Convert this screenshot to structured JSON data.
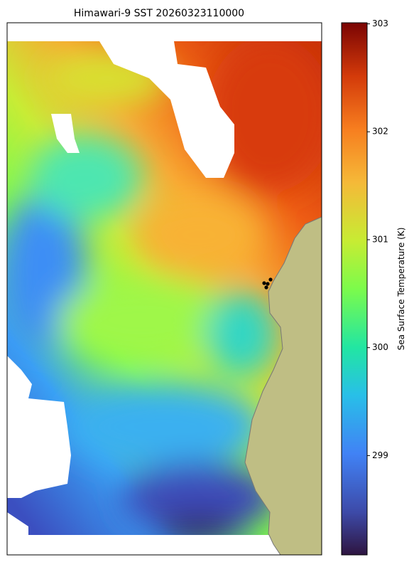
{
  "title": "Himawari-9 SST 20260323110000",
  "colorbar": {
    "label": "Sea Surface Temperature (K)",
    "lim": [
      298.08,
      303.01
    ],
    "ticks": [
      299,
      300,
      301,
      302,
      303
    ]
  }
}
